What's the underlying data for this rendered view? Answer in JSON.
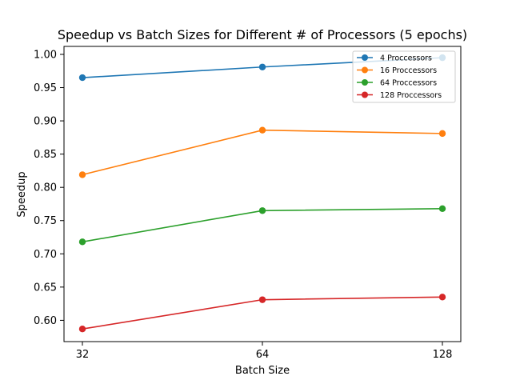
{
  "chart_data": {
    "type": "line",
    "title": "Speedup vs Batch Sizes for Different # of Processors (5 epochs)",
    "xlabel": "Batch Size",
    "ylabel": "Speedup",
    "x": [
      32,
      64,
      128
    ],
    "x_tick_labels": [
      "32",
      "64",
      "128"
    ],
    "ylim": [
      0.568,
      1.012
    ],
    "y_ticks": [
      0.6,
      0.65,
      0.7,
      0.75,
      0.8,
      0.85,
      0.9,
      0.95,
      1.0
    ],
    "y_tick_labels": [
      "0.60",
      "0.65",
      "0.70",
      "0.75",
      "0.80",
      "0.85",
      "0.90",
      "0.95",
      "1.00"
    ],
    "grid": false,
    "legend_position": "top-right",
    "series": [
      {
        "name": "4 Proccessors",
        "color": "#1f77b4",
        "values": [
          0.965,
          0.981,
          0.995
        ]
      },
      {
        "name": "16 Proccessors",
        "color": "#ff7f0e",
        "values": [
          0.819,
          0.886,
          0.881
        ]
      },
      {
        "name": "64 Proccessors",
        "color": "#2ca02c",
        "values": [
          0.718,
          0.765,
          0.768
        ]
      },
      {
        "name": "128 Proccessors",
        "color": "#d62728",
        "values": [
          0.587,
          0.631,
          0.635
        ]
      }
    ]
  }
}
